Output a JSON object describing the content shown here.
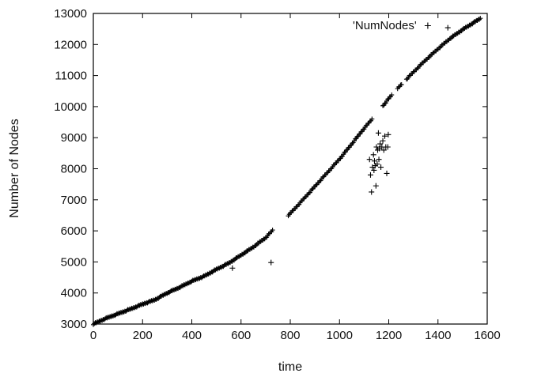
{
  "chart_data": {
    "type": "scatter",
    "xlabel": "time",
    "ylabel": "Number of Nodes",
    "xlim": [
      0,
      1600
    ],
    "ylim": [
      3000,
      13000
    ],
    "xticks": [
      0,
      200,
      400,
      600,
      800,
      1000,
      1200,
      1400,
      1600
    ],
    "yticks": [
      3000,
      4000,
      5000,
      6000,
      7000,
      8000,
      9000,
      10000,
      11000,
      12000,
      13000
    ],
    "grid": false,
    "legend_position": "top-right",
    "marker": "plus",
    "series": [
      {
        "name": "'NumNodes'",
        "color": "#000000",
        "trend": [
          [
            0,
            3000
          ],
          [
            50,
            3180
          ],
          [
            100,
            3330
          ],
          [
            150,
            3480
          ],
          [
            200,
            3640
          ],
          [
            250,
            3780
          ],
          [
            300,
            4000
          ],
          [
            350,
            4180
          ],
          [
            400,
            4380
          ],
          [
            450,
            4540
          ],
          [
            500,
            4760
          ],
          [
            550,
            4960
          ],
          [
            600,
            5220
          ],
          [
            650,
            5480
          ],
          [
            700,
            5780
          ],
          [
            750,
            6200
          ],
          [
            800,
            6560
          ],
          [
            850,
            6990
          ],
          [
            900,
            7430
          ],
          [
            950,
            7870
          ],
          [
            1000,
            8310
          ],
          [
            1050,
            8800
          ],
          [
            1100,
            9300
          ],
          [
            1150,
            9760
          ],
          [
            1200,
            10260
          ],
          [
            1250,
            10700
          ],
          [
            1300,
            11110
          ],
          [
            1350,
            11500
          ],
          [
            1400,
            11860
          ],
          [
            1450,
            12200
          ],
          [
            1500,
            12480
          ],
          [
            1550,
            12730
          ],
          [
            1575,
            12850
          ]
        ],
        "gaps": [
          [
            730,
            790
          ],
          [
            1135,
            1175
          ],
          [
            1215,
            1235
          ],
          [
            1255,
            1270
          ]
        ],
        "outliers": [
          [
            565,
            4800
          ],
          [
            722,
            4980
          ],
          [
            1440,
            12540
          ],
          [
            1122,
            8300
          ],
          [
            1126,
            7800
          ],
          [
            1130,
            7250
          ],
          [
            1134,
            8050
          ],
          [
            1138,
            8450
          ],
          [
            1140,
            7950
          ],
          [
            1142,
            8250
          ],
          [
            1145,
            8100
          ],
          [
            1148,
            7450
          ],
          [
            1150,
            8700
          ],
          [
            1153,
            8150
          ],
          [
            1155,
            8600
          ],
          [
            1158,
            9150
          ],
          [
            1160,
            8300
          ],
          [
            1162,
            8650
          ],
          [
            1165,
            8800
          ],
          [
            1168,
            8050
          ],
          [
            1172,
            8700
          ],
          [
            1176,
            8900
          ],
          [
            1180,
            8600
          ],
          [
            1184,
            9050
          ],
          [
            1188,
            8700
          ],
          [
            1192,
            7850
          ],
          [
            1196,
            8700
          ],
          [
            1198,
            9100
          ]
        ]
      }
    ]
  }
}
